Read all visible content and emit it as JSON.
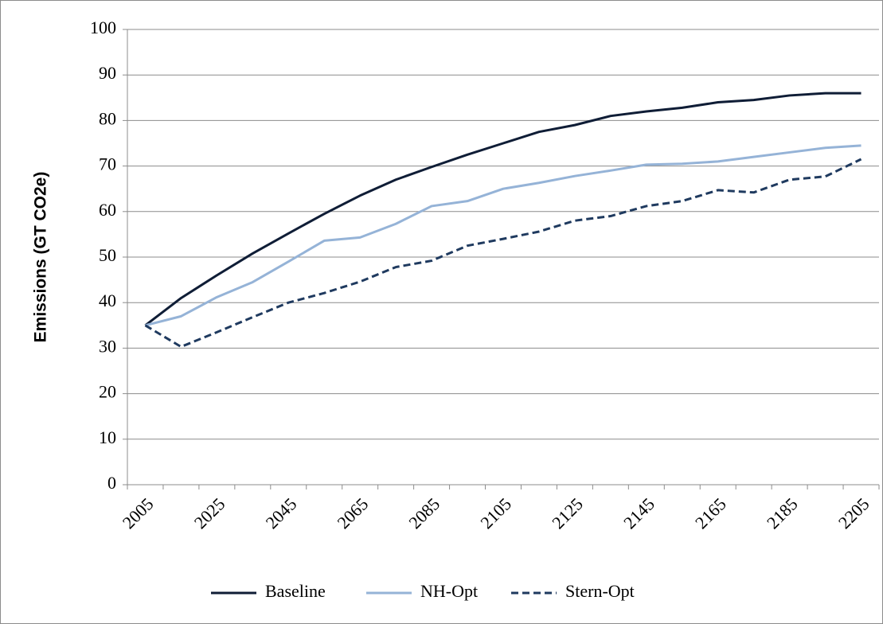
{
  "chart_data": {
    "type": "line",
    "y_label": "Emissions (GT CO2e)",
    "categories": [
      "2005",
      null,
      "2025",
      null,
      "2045",
      null,
      "2065",
      null,
      "2085",
      null,
      "2105",
      null,
      "2125",
      null,
      "2145",
      null,
      "2165",
      null,
      "2185",
      null,
      "2205"
    ],
    "series": [
      {
        "name": "Baseline",
        "color": "#0f1d36",
        "style": "solid",
        "values": [
          35,
          41,
          46,
          50.8,
          55.2,
          59.5,
          63.5,
          67,
          69.8,
          72.5,
          75,
          77.5,
          79,
          81,
          82,
          82.8,
          84,
          84.5,
          85.5,
          86,
          86
        ]
      },
      {
        "name": "NH-Opt",
        "color": "#95b3d7",
        "style": "solid",
        "values": [
          35,
          37,
          41.2,
          44.5,
          49,
          53.6,
          54.3,
          57.3,
          61.2,
          62.3,
          65,
          66.3,
          67.8,
          69,
          70.3,
          70.5,
          71,
          72,
          73,
          74,
          74.5
        ]
      },
      {
        "name": "Stern-Opt",
        "color": "#1f3a5f",
        "style": "dashed",
        "values": [
          35,
          30.3,
          33.5,
          36.8,
          40,
          42.1,
          44.6,
          47.8,
          49.2,
          52.5,
          54,
          55.6,
          58,
          59,
          61.2,
          62.3,
          64.7,
          64.2,
          67,
          67.7,
          71.5
        ]
      }
    ],
    "ylim": [
      0,
      100
    ],
    "yticks": [
      0,
      10,
      20,
      30,
      40,
      50,
      60,
      70,
      80,
      90,
      100
    ],
    "grid": true,
    "legend": "bottom"
  }
}
